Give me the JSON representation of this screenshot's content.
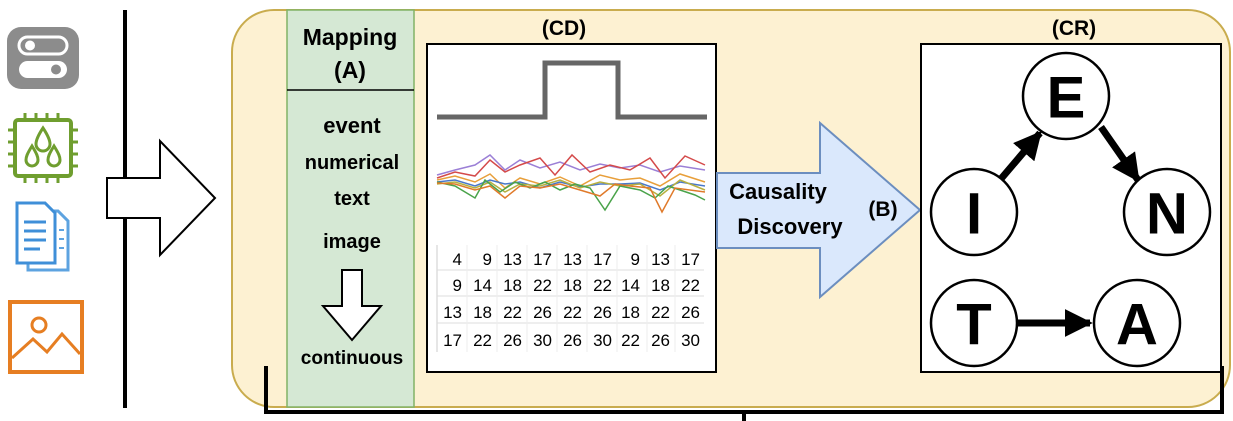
{
  "mapping": {
    "title_line1": "Mapping",
    "title_line2": "(A)",
    "types": [
      "event",
      "numerical",
      "text",
      "image"
    ],
    "target": "continuous"
  },
  "cd": {
    "label": "(CD)"
  },
  "cr": {
    "label": "(CR)"
  },
  "arrow_b": {
    "line1": "Causality",
    "line2": "Discovery",
    "tag": "(B)"
  },
  "nodes": [
    "E",
    "I",
    "N",
    "T",
    "A"
  ],
  "edges": [
    [
      "I",
      "E"
    ],
    [
      "E",
      "N"
    ],
    [
      "T",
      "A"
    ]
  ],
  "table": [
    [
      "4",
      "9",
      "13",
      "17",
      "13",
      "17",
      "9",
      "13",
      "17"
    ],
    [
      "9",
      "14",
      "18",
      "22",
      "18",
      "22",
      "14",
      "18",
      "22"
    ],
    [
      "13",
      "18",
      "22",
      "26",
      "22",
      "26",
      "18",
      "22",
      "26"
    ],
    [
      "17",
      "22",
      "26",
      "30",
      "26",
      "30",
      "22",
      "26",
      "30"
    ]
  ],
  "icons": [
    "toggle-icon",
    "sensor-chip-icon",
    "document-icon",
    "image-icon"
  ],
  "colors": {
    "panel_fill": "#fdf1d2",
    "panel_stroke": "#c9ac4e",
    "mapping_fill": "#d5e8d4",
    "mapping_stroke": "#82b366",
    "arrow_fill": "#dae8fc",
    "arrow_stroke": "#6c8ebf"
  }
}
